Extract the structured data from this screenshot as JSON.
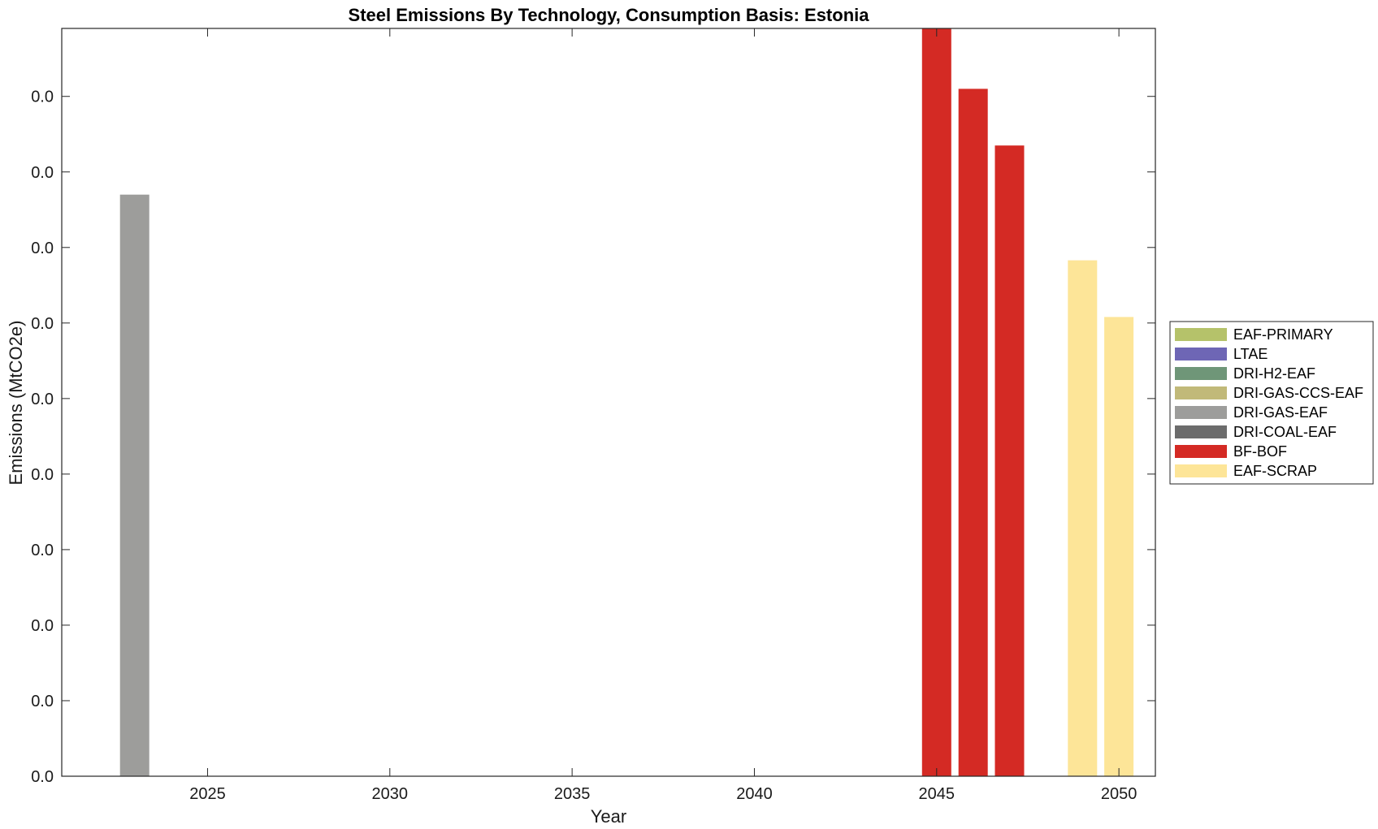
{
  "chart_data": {
    "type": "bar",
    "title": "Steel Emissions By Technology, Consumption Basis: Estonia",
    "xlabel": "Year",
    "ylabel": "Emissions (MtCO2e)",
    "xlim": [
      2021,
      2051
    ],
    "ylim": [
      0,
      0.099
    ],
    "x_ticks": [
      2025,
      2030,
      2035,
      2040,
      2045,
      2050
    ],
    "y_ticks": [
      0,
      0.01,
      0.02,
      0.03,
      0.04,
      0.05,
      0.06,
      0.07,
      0.08,
      0.09
    ],
    "y_tick_labels": [
      "0.0",
      "0.0",
      "0.0",
      "0.0",
      "0.0",
      "0.0",
      "0.0",
      "0.0",
      "0.0",
      "0.0"
    ],
    "grid": false,
    "legend_position": "right",
    "x": [
      2023,
      2045,
      2046,
      2047,
      2049,
      2050
    ],
    "series": [
      {
        "name": "EAF-PRIMARY",
        "color": "#b5c26a",
        "values": [
          0,
          0,
          0,
          0,
          0,
          0
        ]
      },
      {
        "name": "LTAE",
        "color": "#6e66b5",
        "values": [
          0,
          0,
          0,
          0,
          0,
          0
        ]
      },
      {
        "name": "DRI-H2-EAF",
        "color": "#6f9678",
        "values": [
          0,
          0,
          0,
          0,
          0,
          0
        ]
      },
      {
        "name": "DRI-GAS-CCS-EAF",
        "color": "#c1b979",
        "values": [
          0,
          0,
          0,
          0,
          0,
          0
        ]
      },
      {
        "name": "DRI-GAS-EAF",
        "color": "#9d9d9b",
        "values": [
          0.077,
          0,
          0,
          0,
          0,
          0
        ]
      },
      {
        "name": "DRI-COAL-EAF",
        "color": "#6c6c6c",
        "values": [
          0,
          0,
          0,
          0,
          0,
          0
        ]
      },
      {
        "name": "BF-BOF",
        "color": "#d42a24",
        "values": [
          0,
          0.099,
          0.091,
          0.0835,
          0,
          0
        ]
      },
      {
        "name": "EAF-SCRAP",
        "color": "#fde598",
        "values": [
          0,
          0,
          0,
          0,
          0.0683,
          0.0608
        ]
      }
    ]
  }
}
